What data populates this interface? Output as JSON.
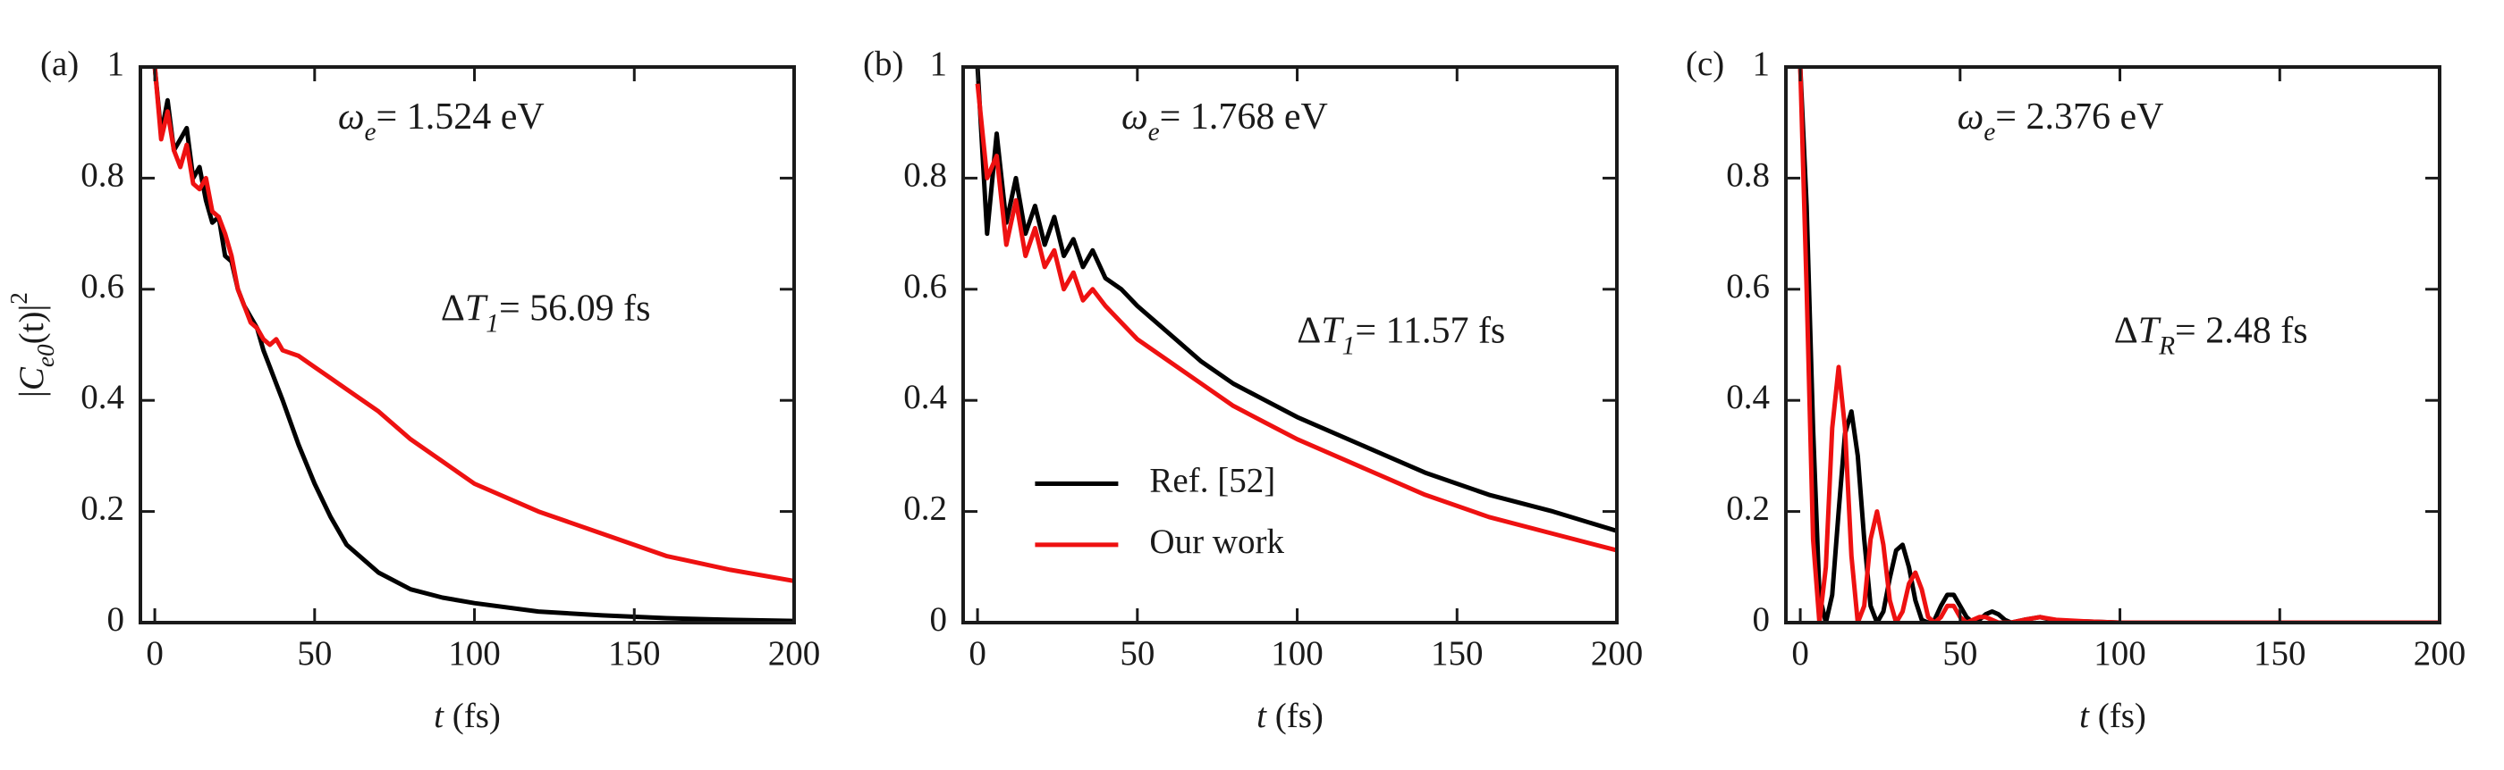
{
  "chart_data": [
    {
      "type": "line",
      "panel_label": "(a)",
      "y_label": {
        "prefix": "|",
        "symbol": "C",
        "subscript": "e0",
        "text": "(t)|",
        "superscript": "2"
      },
      "x_label": {
        "symbol": "t",
        "text": " (fs)"
      },
      "annotations": [
        {
          "symbol": "ω",
          "subscript": "e",
          "text": "= 1.524 eV"
        },
        {
          "prefix": "Δ",
          "symbol": "T",
          "subscript": "1",
          "text": "= 56.09 fs"
        }
      ],
      "x": [
        0,
        2,
        4,
        6,
        8,
        10,
        12,
        14,
        16,
        18,
        20,
        22,
        24,
        26,
        28,
        30,
        32,
        34,
        36,
        38,
        40,
        45,
        50,
        55,
        60,
        70,
        80,
        90,
        100,
        120,
        140,
        160,
        180,
        200
      ],
      "series": [
        {
          "color": "#000000",
          "values": [
            1,
            0.88,
            0.94,
            0.85,
            0.87,
            0.89,
            0.8,
            0.82,
            0.76,
            0.72,
            0.73,
            0.66,
            0.65,
            0.6,
            0.57,
            0.55,
            0.53,
            0.49,
            0.46,
            0.43,
            0.4,
            0.32,
            0.25,
            0.19,
            0.14,
            0.09,
            0.06,
            0.045,
            0.035,
            0.02,
            0.013,
            0.008,
            0.005,
            0.003
          ]
        },
        {
          "color": "#ee1111",
          "values": [
            1,
            0.87,
            0.92,
            0.85,
            0.82,
            0.86,
            0.79,
            0.78,
            0.8,
            0.74,
            0.73,
            0.7,
            0.66,
            0.6,
            0.57,
            0.54,
            0.53,
            0.51,
            0.5,
            0.51,
            0.49,
            0.48,
            0.46,
            0.44,
            0.42,
            0.38,
            0.33,
            0.29,
            0.25,
            0.2,
            0.16,
            0.12,
            0.095,
            0.075
          ]
        }
      ],
      "xlim": [
        -4.5,
        200
      ],
      "ylim": [
        0,
        1
      ],
      "xticks": [
        0,
        50,
        100,
        150,
        200
      ],
      "yticks": [
        0,
        0.2,
        0.4,
        0.6,
        0.8,
        1
      ]
    },
    {
      "type": "line",
      "panel_label": "(b)",
      "x_label": {
        "symbol": "t",
        "text": " (fs)"
      },
      "annotations": [
        {
          "symbol": "ω",
          "subscript": "e",
          "text": "= 1.768 eV"
        },
        {
          "prefix": "Δ",
          "symbol": "T",
          "subscript": "1",
          "text": "= 11.57 fs"
        }
      ],
      "x": [
        0,
        3,
        6,
        9,
        12,
        15,
        18,
        21,
        24,
        27,
        30,
        33,
        36,
        40,
        45,
        50,
        60,
        70,
        80,
        90,
        100,
        120,
        140,
        160,
        180,
        200
      ],
      "series": [
        {
          "name": "Ref. [52]",
          "color": "#000000",
          "values": [
            1,
            0.7,
            0.88,
            0.72,
            0.8,
            0.7,
            0.75,
            0.68,
            0.73,
            0.66,
            0.69,
            0.64,
            0.67,
            0.62,
            0.6,
            0.57,
            0.52,
            0.47,
            0.43,
            0.4,
            0.37,
            0.32,
            0.27,
            0.23,
            0.2,
            0.165
          ]
        },
        {
          "name": "Our work",
          "color": "#ee1111",
          "values": [
            0.97,
            0.8,
            0.84,
            0.68,
            0.76,
            0.66,
            0.71,
            0.64,
            0.67,
            0.6,
            0.63,
            0.58,
            0.6,
            0.57,
            0.54,
            0.51,
            0.47,
            0.43,
            0.39,
            0.36,
            0.33,
            0.28,
            0.23,
            0.19,
            0.16,
            0.13
          ]
        }
      ],
      "legend": "center left",
      "xlim": [
        -4.5,
        200
      ],
      "ylim": [
        0,
        1
      ],
      "xticks": [
        0,
        50,
        100,
        150,
        200
      ],
      "yticks": [
        0,
        0.2,
        0.4,
        0.6,
        0.8,
        1
      ]
    },
    {
      "type": "line",
      "panel_label": "(c)",
      "x_label": {
        "symbol": "t",
        "text": " (fs)"
      },
      "annotations": [
        {
          "symbol": "ω",
          "subscript": "e",
          "text": "= 2.376 eV"
        },
        {
          "prefix": "Δ",
          "symbol": "T",
          "subscript": "R",
          "text": "= 2.48 fs"
        }
      ],
      "x": [
        0,
        2,
        4,
        6,
        8,
        10,
        12,
        14,
        16,
        18,
        20,
        22,
        24,
        26,
        28,
        30,
        32,
        34,
        36,
        38,
        40,
        42,
        44,
        46,
        48,
        50,
        52,
        54,
        56,
        58,
        60,
        62,
        64,
        66,
        70,
        75,
        80,
        90,
        100,
        150,
        200
      ],
      "series": [
        {
          "color": "#000000",
          "values": [
            1,
            0.75,
            0.35,
            0.05,
            0,
            0.05,
            0.2,
            0.34,
            0.38,
            0.3,
            0.15,
            0.03,
            0,
            0.02,
            0.08,
            0.13,
            0.14,
            0.1,
            0.04,
            0.005,
            0,
            0.005,
            0.03,
            0.05,
            0.05,
            0.03,
            0.01,
            0,
            0.005,
            0.015,
            0.02,
            0.015,
            0.005,
            0,
            0.005,
            0.01,
            0.003,
            0.002,
            0,
            0,
            0
          ]
        },
        {
          "color": "#ee1111",
          "values": [
            1,
            0.6,
            0.15,
            0,
            0.1,
            0.35,
            0.46,
            0.35,
            0.12,
            0,
            0.03,
            0.15,
            0.2,
            0.14,
            0.04,
            0,
            0.02,
            0.07,
            0.09,
            0.06,
            0.01,
            0,
            0.01,
            0.03,
            0.03,
            0.01,
            0,
            0.005,
            0.01,
            0.01,
            0.005,
            0,
            0,
            0,
            0.005,
            0.01,
            0.005,
            0.002,
            0,
            0,
            0
          ]
        }
      ],
      "xlim": [
        -4.5,
        200
      ],
      "ylim": [
        0,
        1
      ],
      "xticks": [
        0,
        50,
        100,
        150,
        200
      ],
      "yticks": [
        0,
        0.2,
        0.4,
        0.6,
        0.8,
        1
      ]
    }
  ]
}
